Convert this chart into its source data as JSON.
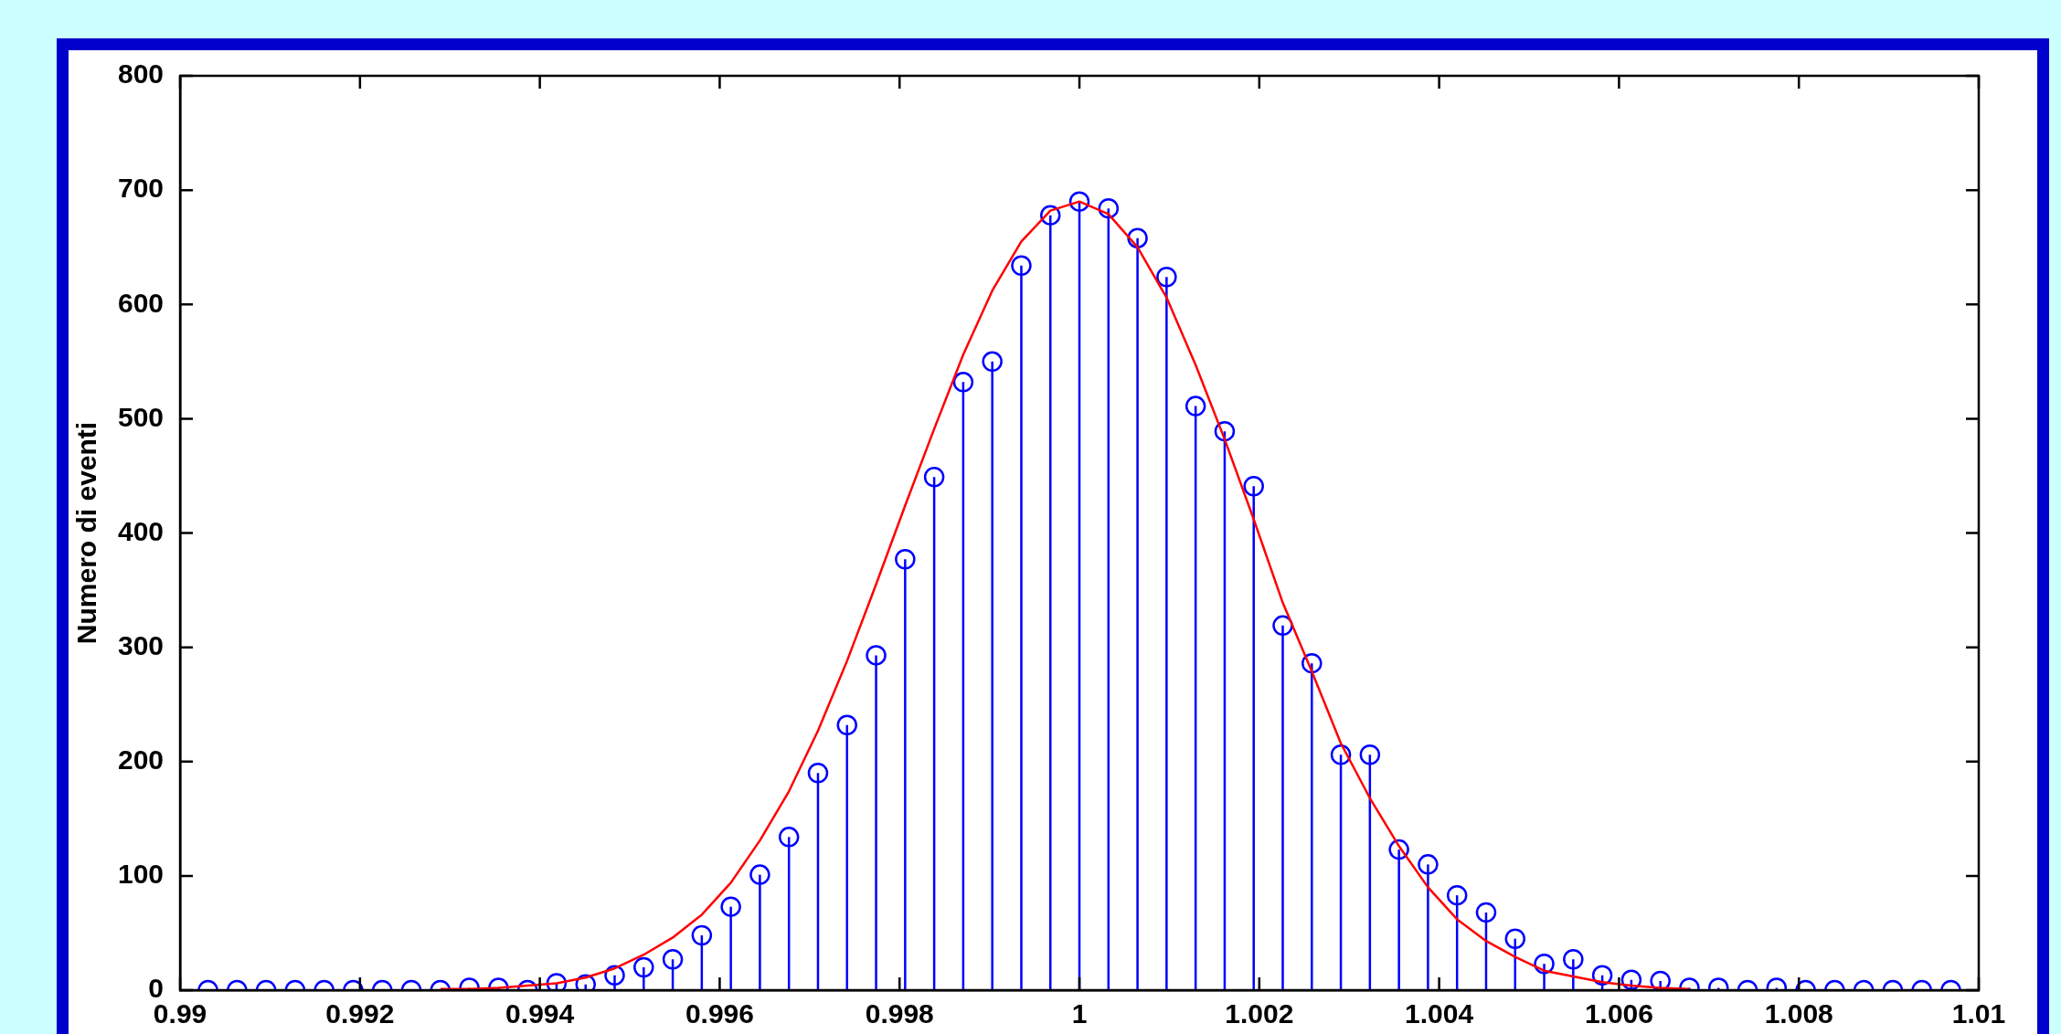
{
  "chart_data": {
    "type": "lollipop",
    "ylabel": "Numero di eventi",
    "x": [
      0.99031,
      0.990633,
      0.990956,
      0.991279,
      0.991602,
      0.991925,
      0.992248,
      0.992571,
      0.992894,
      0.993217,
      0.99354,
      0.993863,
      0.994186,
      0.994509,
      0.994832,
      0.995155,
      0.995478,
      0.995801,
      0.996124,
      0.996447,
      0.99677,
      0.997093,
      0.997416,
      0.997739,
      0.998062,
      0.998385,
      0.998708,
      0.999031,
      0.999354,
      0.999677,
      1,
      1.000323,
      1.000646,
      1.000969,
      1.001292,
      1.001615,
      1.001938,
      1.002261,
      1.002584,
      1.002907,
      1.00323,
      1.003553,
      1.003876,
      1.004199,
      1.004522,
      1.004845,
      1.005168,
      1.005491,
      1.005814,
      1.006137,
      1.00646,
      1.006783,
      1.007106,
      1.007429,
      1.007752,
      1.008075,
      1.008398,
      1.008721,
      1.009044,
      1.009367,
      1.00969
    ],
    "series": [
      {
        "type": "lollipop",
        "color": "#0000ff",
        "marker": "circle",
        "values": [
          0,
          0,
          0,
          0,
          0,
          0,
          0,
          0,
          0,
          2,
          2,
          0,
          6,
          5,
          13,
          20,
          27,
          48,
          73,
          101,
          134,
          190,
          232,
          293,
          377,
          449,
          532,
          550,
          634,
          678,
          690,
          684,
          658,
          624,
          511,
          489,
          441,
          319,
          286,
          206,
          206,
          123,
          110,
          83,
          68,
          45,
          23,
          27,
          13,
          9,
          8,
          2,
          2,
          0,
          2,
          0,
          0,
          0,
          0,
          0,
          0
        ]
      },
      {
        "type": "line",
        "color": "#ff0000",
        "marker": "none",
        "line_style": "solid",
        "values": [
          null,
          null,
          null,
          null,
          null,
          null,
          null,
          null,
          1,
          1,
          2,
          4,
          6,
          11,
          19,
          31,
          46,
          66,
          94,
          131,
          174,
          227,
          288,
          355,
          424,
          491,
          556,
          612,
          655,
          682,
          690,
          679,
          650,
          606,
          547,
          482,
          412,
          339,
          279,
          216,
          168,
          126,
          90,
          62,
          43,
          29,
          17,
          12,
          7,
          4,
          2,
          1,
          null,
          null,
          null,
          null,
          null,
          null,
          null,
          null,
          null
        ]
      }
    ],
    "xlim": [
      0.99,
      1.01
    ],
    "xticks": [
      0.99,
      0.992,
      0.994,
      0.996,
      0.998,
      1,
      1.002,
      1.004,
      1.006,
      1.008,
      1.01
    ],
    "ylim": [
      0,
      800
    ],
    "yticks": [
      0,
      100,
      200,
      300,
      400,
      500,
      600,
      700,
      800
    ],
    "grid": false,
    "legend": false
  }
}
